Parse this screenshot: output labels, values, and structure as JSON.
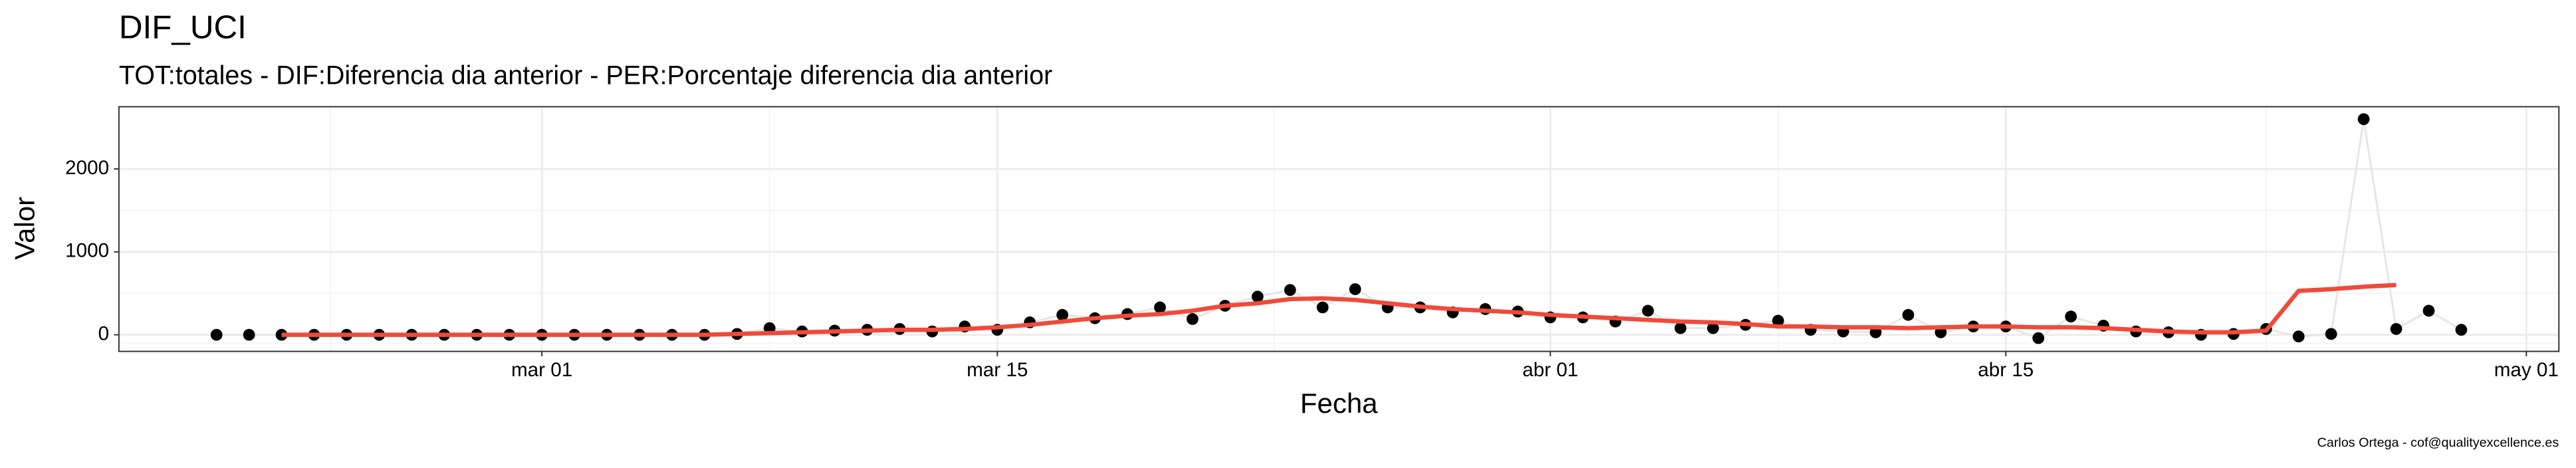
{
  "chart_data": {
    "type": "scatter",
    "title": "DIF_UCI",
    "subtitle": "TOT:totales - DIF:Diferencia dia anterior - PER:Porcentaje diferencia dia anterior",
    "x_label": "Fecha",
    "y_label": "Valor",
    "caption": "Carlos Ortega - cof@qualityexcellence.es",
    "x": [
      "feb 20",
      "feb 21",
      "feb 22",
      "feb 23",
      "feb 24",
      "feb 25",
      "feb 26",
      "feb 27",
      "feb 28",
      "feb 29",
      "mar 01",
      "mar 02",
      "mar 03",
      "mar 04",
      "mar 05",
      "mar 06",
      "mar 07",
      "mar 08",
      "mar 09",
      "mar 10",
      "mar 11",
      "mar 12",
      "mar 13",
      "mar 14",
      "mar 15",
      "mar 16",
      "mar 17",
      "mar 18",
      "mar 19",
      "mar 20",
      "mar 21",
      "mar 22",
      "mar 23",
      "mar 24",
      "mar 25",
      "mar 26",
      "mar 27",
      "mar 28",
      "mar 29",
      "mar 30",
      "mar 31",
      "abr 01",
      "abr 02",
      "abr 03",
      "abr 04",
      "abr 05",
      "abr 06",
      "abr 07",
      "abr 08",
      "abr 09",
      "abr 10",
      "abr 11",
      "abr 12",
      "abr 13",
      "abr 14",
      "abr 15",
      "abr 16",
      "abr 17",
      "abr 18",
      "abr 19",
      "abr 20",
      "abr 21",
      "abr 22",
      "abr 23",
      "abr 24",
      "abr 25",
      "abr 26",
      "abr 27",
      "abr 28",
      "abr 29"
    ],
    "series": [
      {
        "kind": "points",
        "color": "#000000",
        "line_color": "#e6e6e6",
        "values": [
          0,
          0,
          0,
          0,
          0,
          0,
          0,
          0,
          0,
          0,
          0,
          0,
          0,
          0,
          0,
          0,
          10,
          80,
          40,
          50,
          60,
          70,
          40,
          100,
          60,
          150,
          240,
          200,
          250,
          330,
          190,
          350,
          460,
          540,
          330,
          550,
          330,
          330,
          270,
          310,
          280,
          210,
          210,
          160,
          290,
          80,
          80,
          120,
          170,
          60,
          40,
          30,
          240,
          30,
          100,
          100,
          -40,
          220,
          110,
          40,
          30,
          0,
          10,
          70,
          -20,
          10,
          2600,
          70,
          290,
          60
        ]
      },
      {
        "kind": "line",
        "color": "#f04a3a",
        "values": [
          null,
          null,
          0,
          0,
          0,
          0,
          0,
          0,
          0,
          0,
          0,
          0,
          0,
          0,
          0,
          0,
          10,
          20,
          30,
          40,
          50,
          60,
          60,
          70,
          90,
          120,
          160,
          200,
          230,
          250,
          290,
          350,
          380,
          430,
          440,
          420,
          380,
          340,
          310,
          290,
          270,
          240,
          220,
          200,
          180,
          160,
          150,
          130,
          100,
          100,
          90,
          90,
          80,
          90,
          100,
          100,
          90,
          90,
          80,
          60,
          40,
          30,
          30,
          50,
          530,
          550,
          580,
          600,
          null,
          null
        ]
      }
    ],
    "xlim": [
      "feb 17",
      "may 02"
    ],
    "xticks": [
      "mar 01",
      "mar 15",
      "abr 01",
      "abr 15",
      "may 01"
    ],
    "ylim": [
      -200,
      2750
    ],
    "yticks": [
      0,
      1000,
      2000
    ],
    "grid": true
  }
}
